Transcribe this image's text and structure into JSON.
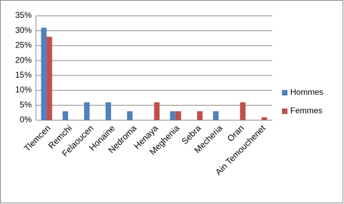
{
  "chart_data": {
    "type": "bar",
    "categories": [
      "Tlemcen",
      "Remchi",
      "Felaoucen",
      "Honaine",
      "Nedroma",
      "Henaya",
      "Meghenia",
      "Sebra",
      "Mecheria",
      "Oran",
      "Ain Temouchenet"
    ],
    "series": [
      {
        "name": "Hommes",
        "color": "#4f81bd",
        "values": [
          31,
          3,
          6,
          6,
          3,
          0,
          3,
          0,
          3,
          0,
          0
        ]
      },
      {
        "name": "Femmes",
        "color": "#c0504d",
        "values": [
          28,
          0,
          0,
          0,
          0,
          6,
          3,
          3,
          0,
          6,
          1
        ]
      }
    ],
    "ylim": [
      0,
      35
    ],
    "yticks": [
      {
        "value": 0,
        "label": "0%"
      },
      {
        "value": 5,
        "label": "5%"
      },
      {
        "value": 10,
        "label": "10%"
      },
      {
        "value": 15,
        "label": "15%"
      },
      {
        "value": 20,
        "label": "20%"
      },
      {
        "value": 25,
        "label": "25%"
      },
      {
        "value": 30,
        "label": "30%"
      },
      {
        "value": 35,
        "label": "35%"
      }
    ],
    "grid": true,
    "legend": "right"
  }
}
